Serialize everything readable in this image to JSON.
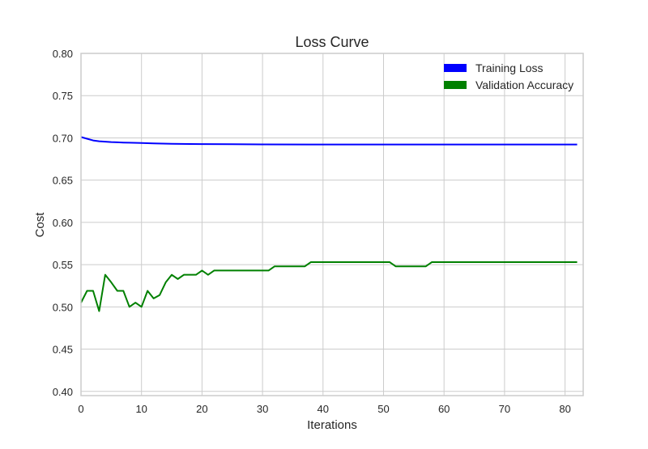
{
  "chart_data": {
    "type": "line",
    "title": "Loss Curve",
    "xlabel": "Iterations",
    "ylabel": "Cost",
    "xlim": [
      0,
      83
    ],
    "ylim": [
      0.395,
      0.8
    ],
    "xticks": [
      0,
      10,
      20,
      30,
      40,
      50,
      60,
      70,
      80
    ],
    "yticks": [
      0.4,
      0.45,
      0.5,
      0.55,
      0.6,
      0.65,
      0.7,
      0.75,
      0.8
    ],
    "grid": true,
    "legend_position": "top-right",
    "series": [
      {
        "name": "Training Loss",
        "color": "#0000ff",
        "x": [
          0,
          1,
          2,
          3,
          4,
          5,
          6,
          7,
          8,
          10,
          12,
          15,
          18,
          20,
          25,
          30,
          40,
          50,
          60,
          70,
          82
        ],
        "y": [
          0.701,
          0.699,
          0.697,
          0.696,
          0.6955,
          0.695,
          0.6948,
          0.6945,
          0.6943,
          0.694,
          0.6935,
          0.693,
          0.6928,
          0.6927,
          0.6925,
          0.6923,
          0.6922,
          0.6922,
          0.6922,
          0.6922,
          0.6922
        ]
      },
      {
        "name": "Validation Accuracy",
        "color": "#008000",
        "x": [
          0,
          1,
          2,
          3,
          4,
          5,
          6,
          7,
          8,
          9,
          10,
          11,
          12,
          13,
          14,
          15,
          16,
          17,
          18,
          19,
          20,
          21,
          22,
          23,
          24,
          25,
          26,
          27,
          28,
          29,
          30,
          31,
          32,
          33,
          34,
          35,
          36,
          37,
          38,
          39,
          40,
          45,
          50,
          51,
          52,
          53,
          54,
          55,
          56,
          57,
          58,
          59,
          60,
          65,
          70,
          75,
          80,
          82
        ],
        "y": [
          0.505,
          0.519,
          0.519,
          0.495,
          0.538,
          0.529,
          0.519,
          0.519,
          0.5,
          0.505,
          0.5,
          0.519,
          0.51,
          0.514,
          0.529,
          0.538,
          0.533,
          0.538,
          0.538,
          0.538,
          0.543,
          0.538,
          0.543,
          0.543,
          0.543,
          0.543,
          0.543,
          0.543,
          0.543,
          0.543,
          0.543,
          0.543,
          0.548,
          0.548,
          0.548,
          0.548,
          0.548,
          0.548,
          0.553,
          0.553,
          0.553,
          0.553,
          0.553,
          0.553,
          0.548,
          0.548,
          0.548,
          0.548,
          0.548,
          0.548,
          0.553,
          0.553,
          0.553,
          0.553,
          0.553,
          0.553,
          0.553,
          0.553
        ]
      }
    ]
  }
}
